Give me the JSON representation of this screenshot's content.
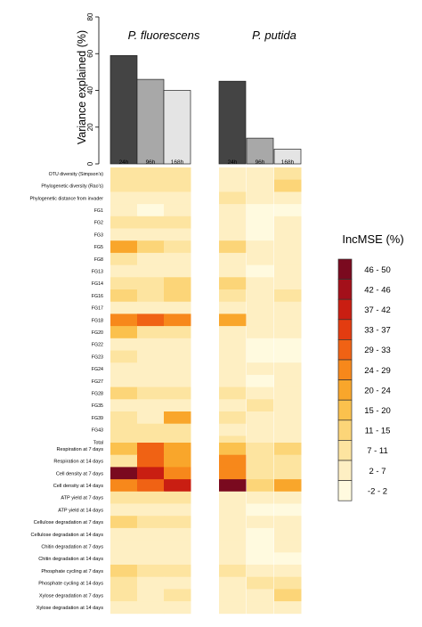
{
  "chart_data": [
    {
      "type": "bar",
      "panels": [
        "P. fluorescens",
        "P. putida"
      ],
      "categories": [
        "24h",
        "96h",
        "168h"
      ],
      "ylabel": "Variance explained (%)",
      "ylim": [
        0,
        80
      ],
      "yticks": [
        "0",
        "20",
        "40",
        "60",
        "80"
      ],
      "series": [
        {
          "name": "P. fluorescens",
          "values": [
            59,
            46,
            40
          ],
          "colors": [
            "#444444",
            "#a8a8a8",
            "#e4e4e4"
          ]
        },
        {
          "name": "P. putida",
          "values": [
            45,
            14,
            8
          ],
          "colors": [
            "#444444",
            "#a8a8a8",
            "#e4e4e4"
          ]
        }
      ]
    },
    {
      "type": "heatmap",
      "columns": [
        "24h",
        "96h",
        "168h"
      ],
      "panels": [
        "P. fluorescens",
        "P. putida"
      ],
      "groups": [
        {
          "rows": [
            "OTU diversity (Simpson's)",
            "Phylogenetic diversity (Rao's)",
            "Phylogenetic distance from invader",
            "FG1",
            "FG2",
            "FG3",
            "FG5",
            "FG8",
            "FG13",
            "FG14",
            "FG16",
            "FG17",
            "FG18",
            "FG20",
            "FG22",
            "FG23",
            "FG24",
            "FG27",
            "FG28",
            "FG35",
            "FG39",
            "FG43",
            "Total"
          ],
          "values": [
            [
              [
                9,
                9,
                9
              ],
              [
                5,
                3,
                7
              ]
            ],
            [
              [
                9,
                9,
                9
              ],
              [
                5,
                3,
                12
              ]
            ],
            [
              [
                5,
                5,
                5
              ],
              [
                7,
                3,
                3
              ]
            ],
            [
              [
                5,
                2,
                5
              ],
              [
                5,
                2,
                2
              ]
            ],
            [
              [
                9,
                9,
                9
              ],
              [
                5,
                2,
                5
              ]
            ],
            [
              [
                5,
                3,
                5
              ],
              [
                5,
                2,
                5
              ]
            ],
            [
              [
                22,
                14,
                9
              ],
              [
                14,
                5,
                3
              ]
            ],
            [
              [
                9,
                3,
                5
              ],
              [
                5,
                3,
                3
              ]
            ],
            [
              [
                5,
                5,
                5
              ],
              [
                5,
                2,
                5
              ]
            ],
            [
              [
                9,
                9,
                14
              ],
              [
                14,
                5,
                5
              ]
            ],
            [
              [
                12,
                9,
                12
              ],
              [
                9,
                5,
                9
              ]
            ],
            [
              [
                5,
                5,
                5
              ],
              [
                5,
                5,
                5
              ]
            ],
            [
              [
                25,
                32,
                26
              ],
              [
                22,
                5,
                5
              ]
            ],
            [
              [
                18,
                9,
                9
              ],
              [
                5,
                3,
                3
              ]
            ],
            [
              [
                5,
                3,
                5
              ],
              [
                5,
                2,
                2
              ]
            ],
            [
              [
                9,
                5,
                5
              ],
              [
                5,
                2,
                2
              ]
            ],
            [
              [
                5,
                5,
                5
              ],
              [
                5,
                5,
                3
              ]
            ],
            [
              [
                5,
                5,
                5
              ],
              [
                5,
                2,
                5
              ]
            ],
            [
              [
                12,
                9,
                9
              ],
              [
                9,
                5,
                5
              ]
            ],
            [
              [
                5,
                5,
                3
              ],
              [
                5,
                9,
                5
              ]
            ],
            [
              [
                9,
                5,
                20
              ],
              [
                9,
                5,
                5
              ]
            ],
            [
              [
                9,
                9,
                9
              ],
              [
                5,
                5,
                5
              ]
            ],
            [
              [
                9,
                9,
                9
              ],
              [
                9,
                5,
                5
              ]
            ]
          ]
        },
        {
          "rows": [
            "Respiration at 7 days",
            "Respiration at 14 days",
            "Cell density at 7 days",
            "Cell density at 14 days",
            "ATP yield at 7 days",
            "ATP yield at 14 days",
            "Cellulose degradation at 7 days",
            "Cellulose degradation at 14 days",
            "Chitin degradation at 7 days",
            "Chitin degradation at 14 days",
            "Phosphate cycling at 7 days",
            "Phosphate cycling at 14 days",
            "Xylose degradation at 7 days",
            "Xylose degradation at 14 days"
          ],
          "values": [
            [
              [
                16,
                30,
                22
              ],
              [
                17,
                9,
                12
              ]
            ],
            [
              [
                10,
                29,
                22
              ],
              [
                28,
                9,
                9
              ]
            ],
            [
              [
                47,
                37,
                27
              ],
              [
                27,
                9,
                9
              ]
            ],
            [
              [
                27,
                31,
                41
              ],
              [
                46,
                12,
                22
              ]
            ],
            [
              [
                7,
                9,
                7
              ],
              [
                5,
                5,
                5
              ]
            ],
            [
              [
                5,
                5,
                5
              ],
              [
                5,
                2,
                2
              ]
            ],
            [
              [
                14,
                7,
                9
              ],
              [
                5,
                5,
                5
              ]
            ],
            [
              [
                5,
                5,
                5
              ],
              [
                5,
                2,
                5
              ]
            ],
            [
              [
                5,
                5,
                5
              ],
              [
                5,
                2,
                5
              ]
            ],
            [
              [
                5,
                5,
                5
              ],
              [
                5,
                2,
                2
              ]
            ],
            [
              [
                12,
                7,
                7
              ],
              [
                9,
                3,
                3
              ]
            ],
            [
              [
                7,
                5,
                5
              ],
              [
                5,
                7,
                9
              ]
            ],
            [
              [
                9,
                5,
                7
              ],
              [
                5,
                5,
                12
              ]
            ],
            [
              [
                5,
                5,
                5
              ],
              [
                5,
                5,
                5
              ]
            ]
          ]
        }
      ],
      "legend": {
        "title": "IncMSE (%)",
        "items": [
          {
            "label": "46 - 50",
            "color": "#7a0a1f"
          },
          {
            "label": "42 - 46",
            "color": "#a3101a"
          },
          {
            "label": "37 - 42",
            "color": "#c91e12"
          },
          {
            "label": "33 - 37",
            "color": "#e33c10"
          },
          {
            "label": "29 - 33",
            "color": "#f06214"
          },
          {
            "label": "24 - 29",
            "color": "#f7881b"
          },
          {
            "label": "20 - 24",
            "color": "#f9a62b"
          },
          {
            "label": "15 - 20",
            "color": "#fbc14d"
          },
          {
            "label": "11 - 15",
            "color": "#fcd578"
          },
          {
            "label": "7 - 11",
            "color": "#fde4a0"
          },
          {
            "label": "2 - 7",
            "color": "#feefc3"
          },
          {
            "label": "-2 - 2",
            "color": "#fffadf"
          }
        ]
      }
    }
  ]
}
